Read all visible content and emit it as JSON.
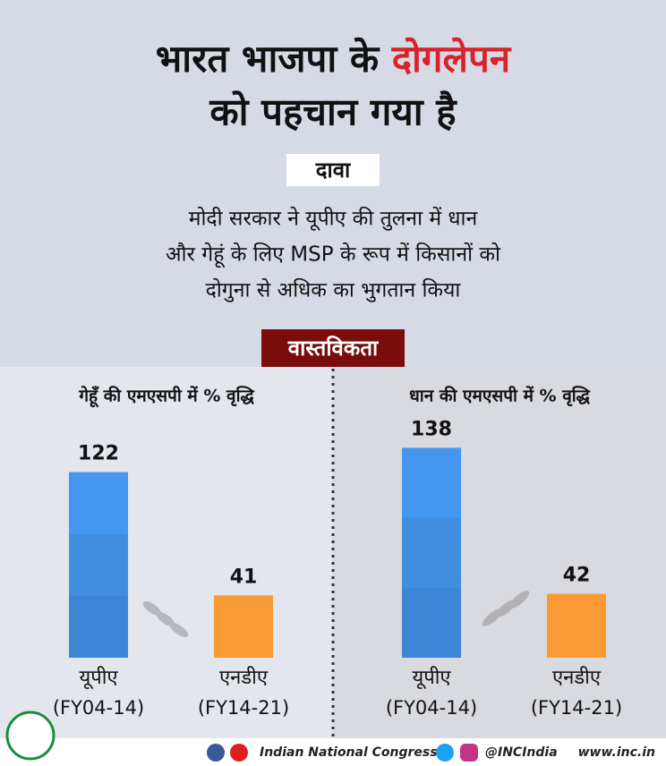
{
  "header": {
    "title_part1": "भारत भाजपा के",
    "title_highlight": "दोगलेपन",
    "title_line2": "को पहचान गया है",
    "claim_label": "दावा",
    "claim_lines": [
      "मोदी सरकार ने यूपीए की तुलना में धान",
      "और गेहूं के लिए MSP के रूप में किसानों को",
      "दोगुना से अधिक का भुगतान किया"
    ],
    "reality_label": "वास्तविकता"
  },
  "chart_data": [
    {
      "type": "bar",
      "title": "गेहूँ की एमएसपी में % वृद्धि",
      "categories": [
        "यूपीए",
        "एनडीए"
      ],
      "periods": [
        "(FY04-14)",
        "(FY14-21)"
      ],
      "values": [
        122,
        41
      ],
      "colors": [
        "#4596ee",
        "#f99a35"
      ]
    },
    {
      "type": "bar",
      "title": "धान की एमएसपी में % वृद्धि",
      "categories": [
        "यूपीए",
        "एनडीए"
      ],
      "periods": [
        "(FY04-14)",
        "(FY14-21)"
      ],
      "values": [
        138,
        42
      ],
      "colors": [
        "#4596ee",
        "#f99a35"
      ]
    }
  ],
  "footer": {
    "org": "Indian National Congress",
    "handle": "@INCIndia",
    "site": "www.inc.in"
  }
}
